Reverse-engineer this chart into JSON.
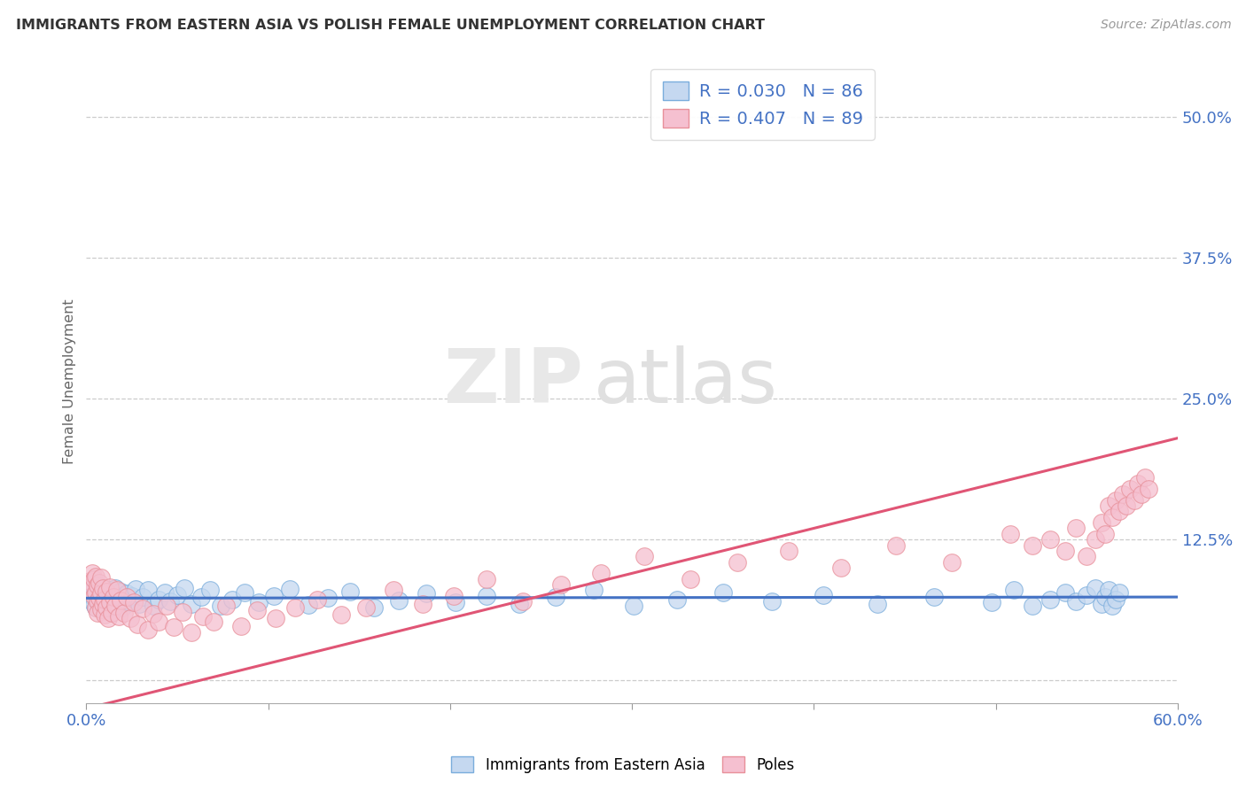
{
  "title": "IMMIGRANTS FROM EASTERN ASIA VS POLISH FEMALE UNEMPLOYMENT CORRELATION CHART",
  "source": "Source: ZipAtlas.com",
  "xlim": [
    0.0,
    0.6
  ],
  "ylim": [
    -0.02,
    0.55
  ],
  "watermark_top": "ZIP",
  "watermark_bottom": "atlas",
  "legend_1_label": "R = 0.030   N = 86",
  "legend_2_label": "R = 0.407   N = 89",
  "legend_bottom_1": "Immigrants from Eastern Asia",
  "legend_bottom_2": "Poles",
  "blue_face_color": "#c5d8f0",
  "pink_face_color": "#f5c0d0",
  "blue_edge_color": "#7aaddc",
  "pink_edge_color": "#e8909a",
  "blue_line_color": "#4472C4",
  "pink_line_color": "#e05575",
  "title_color": "#333333",
  "axis_label_color": "#4472C4",
  "ylabel": "Female Unemployment",
  "x_ticks": [
    0.0,
    0.1,
    0.2,
    0.3,
    0.4,
    0.5,
    0.6
  ],
  "y_ticks": [
    0.0,
    0.125,
    0.25,
    0.375,
    0.5
  ],
  "y_tick_labels": [
    "",
    "12.5%",
    "25.0%",
    "37.5%",
    "50.0%"
  ],
  "x_tick_labels": [
    "0.0%",
    "",
    "",
    "",
    "",
    "",
    "60.0%"
  ],
  "blue_x": [
    0.003,
    0.004,
    0.004,
    0.005,
    0.005,
    0.005,
    0.006,
    0.006,
    0.006,
    0.007,
    0.007,
    0.008,
    0.008,
    0.008,
    0.009,
    0.009,
    0.01,
    0.01,
    0.011,
    0.011,
    0.012,
    0.013,
    0.013,
    0.014,
    0.015,
    0.015,
    0.016,
    0.017,
    0.018,
    0.019,
    0.02,
    0.021,
    0.022,
    0.024,
    0.025,
    0.027,
    0.029,
    0.031,
    0.034,
    0.037,
    0.04,
    0.043,
    0.046,
    0.05,
    0.054,
    0.058,
    0.063,
    0.068,
    0.074,
    0.08,
    0.087,
    0.095,
    0.103,
    0.112,
    0.122,
    0.133,
    0.145,
    0.158,
    0.172,
    0.187,
    0.203,
    0.22,
    0.238,
    0.258,
    0.279,
    0.301,
    0.325,
    0.35,
    0.377,
    0.405,
    0.435,
    0.466,
    0.498,
    0.51,
    0.52,
    0.53,
    0.538,
    0.544,
    0.55,
    0.555,
    0.558,
    0.56,
    0.562,
    0.564,
    0.566,
    0.568
  ],
  "blue_y": [
    0.075,
    0.068,
    0.082,
    0.073,
    0.079,
    0.065,
    0.07,
    0.076,
    0.083,
    0.069,
    0.078,
    0.064,
    0.072,
    0.08,
    0.075,
    0.067,
    0.073,
    0.081,
    0.068,
    0.077,
    0.072,
    0.065,
    0.08,
    0.074,
    0.069,
    0.076,
    0.082,
    0.067,
    0.073,
    0.079,
    0.065,
    0.071,
    0.077,
    0.069,
    0.075,
    0.081,
    0.068,
    0.074,
    0.08,
    0.066,
    0.072,
    0.078,
    0.07,
    0.076,
    0.082,
    0.068,
    0.074,
    0.08,
    0.066,
    0.072,
    0.078,
    0.069,
    0.075,
    0.081,
    0.067,
    0.073,
    0.079,
    0.065,
    0.071,
    0.077,
    0.069,
    0.075,
    0.068,
    0.074,
    0.08,
    0.066,
    0.072,
    0.078,
    0.07,
    0.076,
    0.068,
    0.074,
    0.069,
    0.08,
    0.066,
    0.072,
    0.078,
    0.07,
    0.076,
    0.082,
    0.068,
    0.074,
    0.08,
    0.066,
    0.072,
    0.078
  ],
  "pink_x": [
    0.002,
    0.003,
    0.003,
    0.004,
    0.004,
    0.005,
    0.005,
    0.005,
    0.006,
    0.006,
    0.006,
    0.007,
    0.007,
    0.008,
    0.008,
    0.008,
    0.009,
    0.009,
    0.01,
    0.01,
    0.011,
    0.011,
    0.012,
    0.013,
    0.013,
    0.014,
    0.015,
    0.016,
    0.017,
    0.018,
    0.019,
    0.021,
    0.022,
    0.024,
    0.026,
    0.028,
    0.031,
    0.034,
    0.037,
    0.04,
    0.044,
    0.048,
    0.053,
    0.058,
    0.064,
    0.07,
    0.077,
    0.085,
    0.094,
    0.104,
    0.115,
    0.127,
    0.14,
    0.154,
    0.169,
    0.185,
    0.202,
    0.22,
    0.24,
    0.261,
    0.283,
    0.307,
    0.332,
    0.358,
    0.386,
    0.415,
    0.445,
    0.476,
    0.508,
    0.52,
    0.53,
    0.538,
    0.544,
    0.55,
    0.555,
    0.558,
    0.56,
    0.562,
    0.564,
    0.566,
    0.568,
    0.57,
    0.572,
    0.574,
    0.576,
    0.578,
    0.58,
    0.582,
    0.584
  ],
  "pink_y": [
    0.088,
    0.082,
    0.095,
    0.075,
    0.09,
    0.065,
    0.078,
    0.092,
    0.07,
    0.084,
    0.06,
    0.073,
    0.087,
    0.063,
    0.077,
    0.091,
    0.068,
    0.082,
    0.058,
    0.072,
    0.065,
    0.079,
    0.055,
    0.069,
    0.083,
    0.06,
    0.074,
    0.066,
    0.08,
    0.057,
    0.071,
    0.06,
    0.074,
    0.055,
    0.069,
    0.05,
    0.064,
    0.045,
    0.059,
    0.052,
    0.066,
    0.047,
    0.061,
    0.043,
    0.057,
    0.052,
    0.066,
    0.048,
    0.062,
    0.055,
    0.065,
    0.072,
    0.058,
    0.065,
    0.08,
    0.068,
    0.075,
    0.09,
    0.07,
    0.085,
    0.095,
    0.11,
    0.09,
    0.105,
    0.115,
    0.1,
    0.12,
    0.105,
    0.13,
    0.12,
    0.125,
    0.115,
    0.135,
    0.11,
    0.125,
    0.14,
    0.13,
    0.155,
    0.145,
    0.16,
    0.15,
    0.165,
    0.155,
    0.17,
    0.16,
    0.175,
    0.165,
    0.18,
    0.17
  ]
}
